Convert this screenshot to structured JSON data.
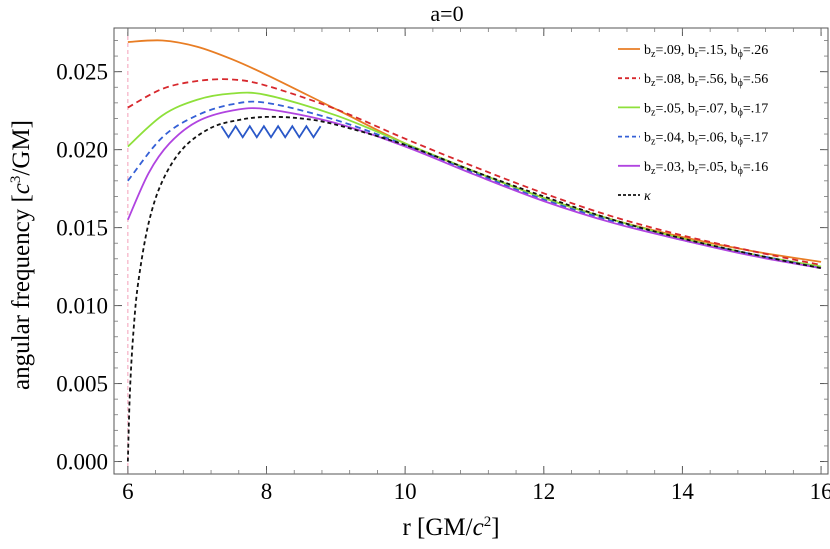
{
  "chart_data": {
    "type": "line",
    "title": "a=0",
    "xlabel": {
      "main": "r [GM/",
      "italic": "c",
      "sup": "2",
      "tail": "]"
    },
    "ylabel": {
      "main": "angular frequency [",
      "italic": "c",
      "sup": "3",
      "tail": "/GM]"
    },
    "xlim": [
      5.8,
      16.1
    ],
    "ylim": [
      -0.0008,
      0.0278
    ],
    "xticks": [
      6,
      8,
      10,
      12,
      14,
      16
    ],
    "xtick_labels": [
      "6",
      "8",
      "10",
      "12",
      "14",
      "16"
    ],
    "yticks": [
      0.0,
      0.005,
      0.01,
      0.015,
      0.02,
      0.025
    ],
    "ytick_labels": [
      "0.000",
      "0.005",
      "0.010",
      "0.015",
      "0.020",
      "0.025"
    ],
    "vline": {
      "x": 6,
      "color": "#f4a0b8"
    },
    "series": [
      {
        "id": "s1",
        "legend": {
          "z": ".09",
          "r": ".15",
          "phi": ".26"
        },
        "color": "#e87d24",
        "dash": "solid",
        "x": [
          6,
          6.5,
          7,
          7.5,
          8,
          9,
          10,
          11,
          12,
          13,
          14,
          15,
          16
        ],
        "y": [
          0.0269,
          0.027,
          0.0266,
          0.0258,
          0.0248,
          0.0226,
          0.0204,
          0.0186,
          0.0169,
          0.0155,
          0.0144,
          0.0135,
          0.0128
        ]
      },
      {
        "id": "s2",
        "legend": {
          "z": ".08",
          "r": ".56",
          "phi": ".56"
        },
        "color": "#d7282d",
        "dash": "6,4",
        "x": [
          6,
          6.5,
          7,
          7.5,
          8,
          9,
          10,
          11,
          12,
          13,
          14,
          15,
          16
        ],
        "y": [
          0.0227,
          0.0239,
          0.0244,
          0.0245,
          0.0241,
          0.0226,
          0.0207,
          0.0189,
          0.0172,
          0.0157,
          0.0145,
          0.0135,
          0.0126
        ]
      },
      {
        "id": "s3",
        "legend": {
          "z": ".05",
          "r": ".07",
          "phi": ".17"
        },
        "color": "#8ee03a",
        "dash": "solid",
        "x": [
          6,
          6.5,
          7,
          7.5,
          8,
          9,
          10,
          11,
          12,
          13,
          14,
          15,
          16
        ],
        "y": [
          0.0202,
          0.0222,
          0.0232,
          0.0236,
          0.0235,
          0.0222,
          0.0204,
          0.0186,
          0.0169,
          0.0155,
          0.0143,
          0.0133,
          0.0125
        ]
      },
      {
        "id": "s4",
        "legend": {
          "z": ".04",
          "r": ".06",
          "phi": ".17"
        },
        "color": "#3560d6",
        "dash": "6,4",
        "x": [
          6,
          6.5,
          7,
          7.5,
          8,
          9,
          10,
          11,
          12,
          13,
          14,
          15,
          16
        ],
        "y": [
          0.018,
          0.0208,
          0.0222,
          0.0229,
          0.023,
          0.0219,
          0.0203,
          0.0185,
          0.0168,
          0.0154,
          0.0142,
          0.0133,
          0.0124
        ]
      },
      {
        "id": "s5",
        "legend": {
          "z": ".03",
          "r": ".05",
          "phi": ".16"
        },
        "color": "#b044e0",
        "dash": "solid",
        "x": [
          6,
          6.3,
          6.6,
          7,
          7.5,
          8,
          9,
          10,
          11,
          12,
          13,
          14,
          15,
          16
        ],
        "y": [
          0.0155,
          0.0185,
          0.0204,
          0.0218,
          0.0225,
          0.0226,
          0.0217,
          0.0202,
          0.0184,
          0.0167,
          0.0153,
          0.0142,
          0.0132,
          0.0124
        ]
      },
      {
        "id": "s6",
        "legend": {
          "kappa": "κ"
        },
        "color": "#111111",
        "dash": "4,3",
        "x": [
          6,
          6.03,
          6.08,
          6.15,
          6.3,
          6.5,
          6.8,
          7.2,
          7.6,
          8,
          8.5,
          9,
          10,
          11,
          12,
          13,
          14,
          15,
          16
        ],
        "y": [
          0.0,
          0.0045,
          0.0083,
          0.0115,
          0.0153,
          0.018,
          0.0201,
          0.0214,
          0.0219,
          0.0221,
          0.022,
          0.0216,
          0.0203,
          0.0186,
          0.017,
          0.0155,
          0.0143,
          0.0133,
          0.0124
        ]
      }
    ],
    "annotation": {
      "type": "zigzag",
      "color": "#2a58c8",
      "x_start": 7.35,
      "x_end": 8.78,
      "y_low": 0.0208,
      "y_high": 0.0215,
      "teeth": 7
    },
    "legend_position": "top-right"
  }
}
